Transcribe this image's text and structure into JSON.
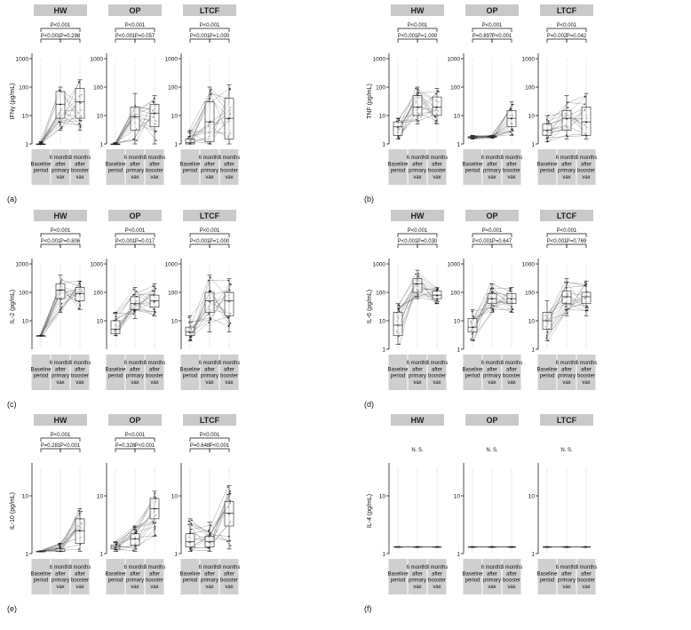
{
  "group_titles": [
    "HW",
    "OP",
    "LTCF"
  ],
  "categories": [
    [
      "Baseline",
      "period"
    ],
    [
      "6 months",
      "after",
      "primary",
      "vax"
    ],
    [
      "3 months",
      "after",
      "booster",
      "vax"
    ]
  ],
  "colors": {
    "title_bg": "#c9c9c9",
    "category_bg": "#cfcfcf",
    "line": "#555555",
    "point": "#222222"
  },
  "chart_data": [
    {
      "type": "box",
      "panel_label": "(a)",
      "ylabel": "IFNγ (pg/mL)",
      "yscale": "log",
      "ylim": [
        1,
        1000
      ],
      "yticks": [
        1,
        10,
        100,
        1000
      ],
      "groups": [
        {
          "name": "HW",
          "stats": [
            [
              1,
              1,
              1,
              1,
              1.2
            ],
            [
              3,
              8,
              25,
              70,
              100
            ],
            [
              3,
              8,
              30,
              90,
              180
            ]
          ],
          "p": [
            "P<0.001",
            "P<0.001",
            "P=0.298"
          ]
        },
        {
          "name": "OP",
          "stats": [
            [
              1,
              1,
              1,
              1,
              1.1
            ],
            [
              1,
              3,
              9,
              20,
              60
            ],
            [
              1,
              4,
              12,
              25,
              50
            ]
          ],
          "p": [
            "P<0.001",
            "P<0.001",
            "P=0.057"
          ]
        },
        {
          "name": "LTCF",
          "stats": [
            [
              1,
              1,
              1.1,
              1.5,
              3
            ],
            [
              1,
              1.2,
              6,
              30,
              100
            ],
            [
              1,
              1.5,
              8,
              40,
              120
            ]
          ],
          "p": [
            "P<0.001",
            "P<0.001",
            "P=1.000"
          ]
        }
      ]
    },
    {
      "type": "box",
      "panel_label": "(b)",
      "ylabel": "TNF (pg/mL)",
      "yscale": "log",
      "ylim": [
        1,
        1000
      ],
      "yticks": [
        1,
        10,
        100,
        1000
      ],
      "groups": [
        {
          "name": "HW",
          "stats": [
            [
              1.5,
              2,
              4,
              6,
              8
            ],
            [
              5,
              10,
              20,
              50,
              100
            ],
            [
              5,
              10,
              20,
              45,
              90
            ]
          ],
          "p": [
            "P<0.001",
            "P<0.001",
            "P=1.000"
          ]
        },
        {
          "name": "OP",
          "stats": [
            [
              1.5,
              1.6,
              1.7,
              1.8,
              2
            ],
            [
              1.6,
              1.7,
              1.8,
              1.9,
              2
            ],
            [
              2,
              4,
              8,
              15,
              30
            ]
          ],
          "p": [
            "P<0.001",
            "P=0.897",
            "P<0.001"
          ]
        },
        {
          "name": "LTCF",
          "stats": [
            [
              1.2,
              2,
              3,
              5,
              10
            ],
            [
              1.5,
              3,
              8,
              15,
              50
            ],
            [
              1.5,
              2,
              6,
              20,
              60
            ]
          ],
          "p": [
            "P<0.001",
            "P=0.002",
            "P=0.042"
          ]
        }
      ]
    },
    {
      "type": "box",
      "panel_label": "(c)",
      "ylabel": "IL-2 (pg/mL)",
      "yscale": "log",
      "ylim": [
        1,
        1000
      ],
      "yticks": [
        10,
        100,
        1000
      ],
      "groups": [
        {
          "name": "HW",
          "stats": [
            [
              3,
              3,
              3,
              3,
              3
            ],
            [
              20,
              60,
              120,
              200,
              400
            ],
            [
              25,
              50,
              90,
              150,
              250
            ]
          ],
          "p": [
            "P<0.001",
            "P<0.001",
            "P=0.806"
          ]
        },
        {
          "name": "OP",
          "stats": [
            [
              3,
              3.5,
              5,
              10,
              20
            ],
            [
              12,
              25,
              40,
              70,
              150
            ],
            [
              15,
              30,
              50,
              80,
              200
            ]
          ],
          "p": [
            "P<0.001",
            "P<0.001",
            "P=0.017"
          ]
        },
        {
          "name": "LTCF",
          "stats": [
            [
              2,
              3,
              4,
              6,
              15
            ],
            [
              4,
              20,
              50,
              100,
              400
            ],
            [
              4,
              15,
              50,
              100,
              300
            ]
          ],
          "p": [
            "P<0.001",
            "P<0.001",
            "P=1.000"
          ]
        }
      ]
    },
    {
      "type": "box",
      "panel_label": "(d)",
      "ylabel": "IL-6 (pg/mL)",
      "yscale": "log",
      "ylim": [
        1,
        1000
      ],
      "yticks": [
        1,
        10,
        100,
        1000
      ],
      "groups": [
        {
          "name": "HW",
          "stats": [
            [
              1.5,
              3,
              7,
              20,
              40
            ],
            [
              60,
              100,
              200,
              300,
              600
            ],
            [
              40,
              60,
              80,
              110,
              150
            ]
          ],
          "p": [
            "P<0.001",
            "P<0.001",
            "P=0.030"
          ]
        },
        {
          "name": "OP",
          "stats": [
            [
              2,
              4,
              6,
              12,
              25
            ],
            [
              20,
              40,
              60,
              90,
              200
            ],
            [
              20,
              40,
              60,
              90,
              150
            ]
          ],
          "p": [
            "P<0.001",
            "P<0.001",
            "P=0.647"
          ]
        },
        {
          "name": "LTCF",
          "stats": [
            [
              2,
              5,
              10,
              20,
              50
            ],
            [
              15,
              40,
              70,
              110,
              300
            ],
            [
              15,
              40,
              70,
              100,
              250
            ]
          ],
          "p": [
            "P<0.001",
            "P<0.001",
            "P=0.769"
          ]
        }
      ]
    },
    {
      "type": "box",
      "panel_label": "(e)",
      "ylabel": "IL-10 (pg/mL)",
      "yscale": "log",
      "ylim": [
        1,
        30
      ],
      "yticks": [
        1,
        10
      ],
      "groups": [
        {
          "name": "HW",
          "stats": [
            [
              1.1,
              1.1,
              1.1,
              1.1,
              1.1
            ],
            [
              1.1,
              1.1,
              1.1,
              1.2,
              1.5
            ],
            [
              1.1,
              1.5,
              2.5,
              4,
              6
            ]
          ],
          "p": [
            "P<0.001",
            "P=0.281",
            "P<0.001"
          ]
        },
        {
          "name": "OP",
          "stats": [
            [
              1.1,
              1.2,
              1.3,
              1.4,
              1.6
            ],
            [
              1.1,
              1.4,
              1.8,
              2.2,
              3
            ],
            [
              2,
              4,
              6,
              9,
              12
            ]
          ],
          "p": [
            "P<0.001",
            "P=0.328",
            "P<0.001"
          ]
        },
        {
          "name": "LTCF",
          "stats": [
            [
              1.1,
              1.3,
              1.6,
              2.2,
              4
            ],
            [
              1.1,
              1.3,
              1.6,
              2,
              3.5
            ],
            [
              1.2,
              3,
              5,
              8,
              15
            ]
          ],
          "p": [
            "P<0.001",
            "P=0.648",
            "P<0.001"
          ]
        }
      ]
    },
    {
      "type": "line",
      "panel_label": "(f)",
      "ylabel": "IL-4 (pg/mL)",
      "yscale": "log",
      "ylim": [
        1,
        30
      ],
      "yticks": [
        1,
        10
      ],
      "groups": [
        {
          "name": "HW",
          "stats": [
            [
              1.3,
              1.3,
              1.3,
              1.3,
              1.3
            ],
            [
              1.3,
              1.3,
              1.3,
              1.3,
              1.3
            ],
            [
              1.3,
              1.3,
              1.3,
              1.3,
              1.3
            ]
          ],
          "p": [
            "N. S."
          ]
        },
        {
          "name": "OP",
          "stats": [
            [
              1.3,
              1.3,
              1.3,
              1.3,
              1.3
            ],
            [
              1.3,
              1.3,
              1.3,
              1.3,
              1.3
            ],
            [
              1.3,
              1.3,
              1.3,
              1.3,
              1.3
            ]
          ],
          "p": [
            "N. S."
          ]
        },
        {
          "name": "LTCF",
          "stats": [
            [
              1.3,
              1.3,
              1.3,
              1.3,
              1.3
            ],
            [
              1.3,
              1.3,
              1.3,
              1.3,
              1.3
            ],
            [
              1.3,
              1.3,
              1.3,
              1.3,
              1.3
            ]
          ],
          "p": [
            "N. S."
          ]
        }
      ]
    }
  ]
}
